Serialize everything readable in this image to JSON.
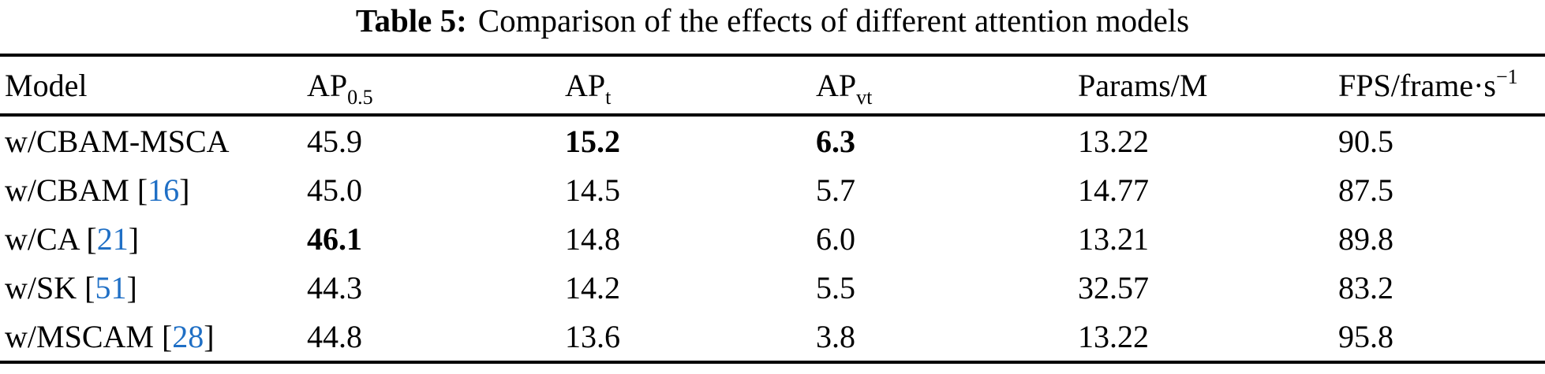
{
  "caption": {
    "label": "Table 5:",
    "text": "Comparison of the effects of different attention models"
  },
  "colors": {
    "citation_blue": "#1f6fc5",
    "text": "#000000",
    "background": "#ffffff",
    "rule": "#000000"
  },
  "table": {
    "columns": [
      {
        "key": "model",
        "label": "Model"
      },
      {
        "key": "ap05",
        "label": "AP",
        "sub": "0.5"
      },
      {
        "key": "apt",
        "label": "AP",
        "sub": "t"
      },
      {
        "key": "apvt",
        "label": "AP",
        "sub": "vt"
      },
      {
        "key": "params",
        "label": "Params/M"
      },
      {
        "key": "fps",
        "label": "FPS/frame·s",
        "sup": "−1"
      }
    ],
    "rows": [
      {
        "model": "w/CBAM-MSCA",
        "cite": null,
        "ap05": "45.9",
        "apt": "15.2",
        "apvt": "6.3",
        "params": "13.22",
        "fps": "90.5",
        "bold": [
          "apt",
          "apvt"
        ]
      },
      {
        "model": "w/CBAM",
        "cite": "16",
        "ap05": "45.0",
        "apt": "14.5",
        "apvt": "5.7",
        "params": "14.77",
        "fps": "87.5",
        "bold": []
      },
      {
        "model": "w/CA",
        "cite": "21",
        "ap05": "46.1",
        "apt": "14.8",
        "apvt": "6.0",
        "params": "13.21",
        "fps": "89.8",
        "bold": [
          "ap05"
        ]
      },
      {
        "model": "w/SK",
        "cite": "51",
        "ap05": "44.3",
        "apt": "14.2",
        "apvt": "5.5",
        "params": "32.57",
        "fps": "83.2",
        "bold": []
      },
      {
        "model": "w/MSCAM",
        "cite": "28",
        "ap05": "44.8",
        "apt": "13.6",
        "apvt": "3.8",
        "params": "13.22",
        "fps": "95.8",
        "bold": []
      }
    ]
  }
}
